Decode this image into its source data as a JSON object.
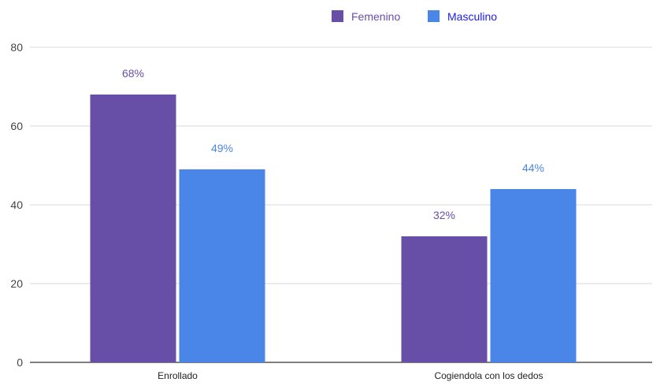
{
  "chart_data": {
    "type": "bar",
    "categories": [
      "Enrollado",
      "Cogiendola con los dedos"
    ],
    "series": [
      {
        "name": "Femenino",
        "values": [
          68,
          32
        ],
        "labels": [
          "68%",
          "32%"
        ],
        "color": "#674ea7",
        "label_color": "#674ea7"
      },
      {
        "name": "Masculino",
        "values": [
          49,
          44
        ],
        "labels": [
          "49%",
          "44%"
        ],
        "color": "#4a86e8",
        "label_color": "#4a86e8"
      }
    ],
    "y_ticks": [
      "0",
      "20",
      "40",
      "60",
      "80"
    ],
    "ylim": [
      0,
      80
    ],
    "grid": true,
    "legend_position": "top-center",
    "title": "",
    "xlabel": "",
    "ylabel": ""
  },
  "legend": {
    "femenino_label": "Femenino",
    "masculino_label": "Masculino",
    "femenino_text_color": "#674ea7",
    "masculino_text_color": "#1c1ce6"
  }
}
